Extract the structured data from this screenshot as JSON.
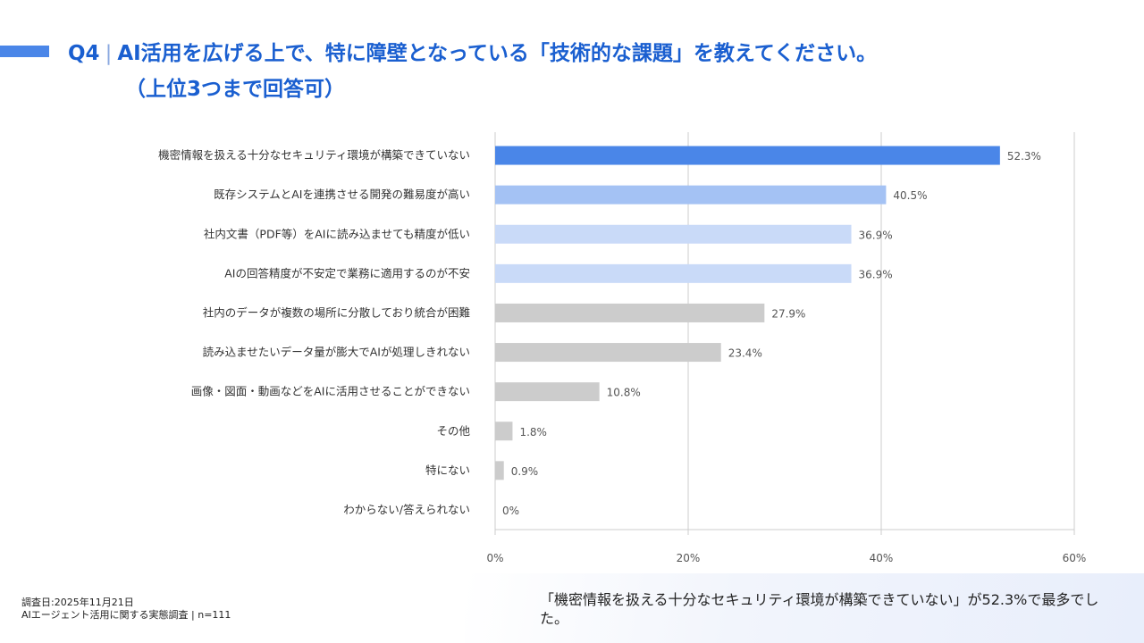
{
  "header": {
    "question_no": "Q4",
    "separator": "|",
    "title_line1": "AI活用を広げる上で、特に障壁となっている「技術的な課題」を教えてください。",
    "title_line2": "（上位3つまで回答可）",
    "accent_color": "#4a86e8",
    "title_color": "#1a5fd0"
  },
  "chart_data": {
    "type": "bar",
    "orientation": "horizontal",
    "categories": [
      "機密情報を扱える十分なセキュリティ環境が構築できていない",
      "既存システムとAIを連携させる開発の難易度が高い",
      "社内文書（PDF等）をAIに読み込ませても精度が低い",
      "AIの回答精度が不安定で業務に適用するのが不安",
      "社内のデータが複数の場所に分散しており統合が困難",
      "読み込ませたいデータ量が膨大でAIが処理しきれない",
      "画像・図面・動画などをAIに活用させることができない",
      "その他",
      "特にない",
      "わからない/答えられない"
    ],
    "values": [
      52.3,
      40.5,
      36.9,
      36.9,
      27.9,
      23.4,
      10.8,
      1.8,
      0.9,
      0
    ],
    "value_labels": [
      "52.3%",
      "40.5%",
      "36.9%",
      "36.9%",
      "27.9%",
      "23.4%",
      "10.8%",
      "1.8%",
      "0.9%",
      "0%"
    ],
    "colors": [
      "#4a86e8",
      "#a4c2f4",
      "#c9daf8",
      "#c9daf8",
      "#cccccc",
      "#cccccc",
      "#cccccc",
      "#cccccc",
      "#cccccc",
      "#cccccc"
    ],
    "xlim": [
      0,
      60
    ],
    "xticks": [
      0,
      20,
      40,
      60
    ],
    "xtick_labels": [
      "0%",
      "20%",
      "40%",
      "60%"
    ],
    "grid": true,
    "title": "",
    "xlabel": "",
    "ylabel": "",
    "legend": "none"
  },
  "footer": {
    "survey_date": "調査日:2025年11月21日",
    "survey_name": "AIエージェント活用に関する実態調査 | n=111"
  },
  "summary": {
    "text": "「機密情報を扱える十分なセキュリティ環境が構築できていない」が52.3%で最多でした。"
  }
}
